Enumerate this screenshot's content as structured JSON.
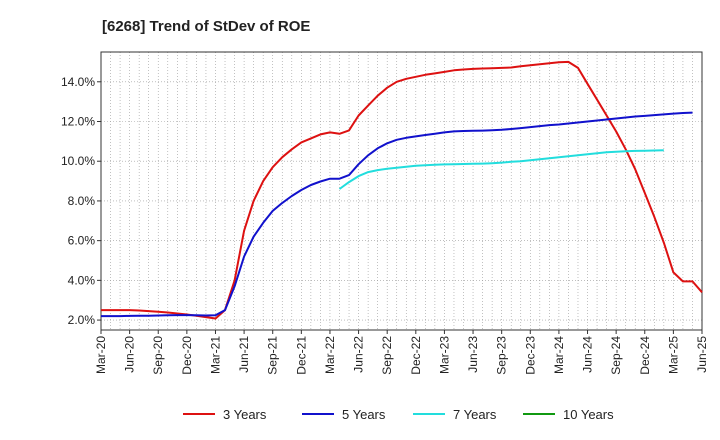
{
  "chart_data": {
    "type": "line",
    "title": "[6268]  Trend of StDev of ROE",
    "xlabel": "",
    "ylabel": "",
    "x_labels": [
      "Mar-20",
      "Jun-20",
      "Sep-20",
      "Dec-20",
      "Mar-21",
      "Jun-21",
      "Sep-21",
      "Dec-21",
      "Mar-22",
      "Jun-22",
      "Sep-22",
      "Dec-22",
      "Mar-23",
      "Jun-23",
      "Sep-23",
      "Dec-23",
      "Mar-24",
      "Jun-24",
      "Sep-24",
      "Dec-24",
      "Mar-25",
      "Jun-25"
    ],
    "ylim": [
      1.5,
      15.5
    ],
    "yticks": [
      2.0,
      4.0,
      6.0,
      8.0,
      10.0,
      12.0,
      14.0
    ],
    "ytick_labels": [
      "2.0%",
      "4.0%",
      "6.0%",
      "8.0%",
      "10.0%",
      "12.0%",
      "14.0%"
    ],
    "grid": true,
    "legend_position": "bottom",
    "series": [
      {
        "name": "3 Years",
        "color": "#dd1111",
        "start_month": 0,
        "values": [
          2.5,
          2.5,
          2.5,
          2.5,
          2.48,
          2.45,
          2.42,
          2.38,
          2.33,
          2.28,
          2.22,
          2.15,
          2.08,
          2.5,
          4.0,
          6.5,
          8.0,
          9.0,
          9.7,
          10.2,
          10.6,
          10.95,
          11.15,
          11.35,
          11.45,
          11.38,
          11.55,
          12.3,
          12.8,
          13.3,
          13.7,
          14.0,
          14.15,
          14.25,
          14.35,
          14.42,
          14.5,
          14.58,
          14.62,
          14.65,
          14.67,
          14.68,
          14.7,
          14.72,
          14.78,
          14.83,
          14.88,
          14.93,
          14.98,
          15.0,
          14.7,
          13.9,
          13.1,
          12.3,
          11.5,
          10.6,
          9.6,
          8.4,
          7.2,
          5.9,
          4.4,
          3.95,
          3.95,
          3.4
        ]
      },
      {
        "name": "5 Years",
        "color": "#1111cc",
        "start_month": 0,
        "values": [
          2.2,
          2.2,
          2.2,
          2.21,
          2.22,
          2.22,
          2.23,
          2.24,
          2.25,
          2.25,
          2.24,
          2.23,
          2.24,
          2.5,
          3.7,
          5.2,
          6.2,
          6.9,
          7.5,
          7.9,
          8.25,
          8.55,
          8.8,
          8.98,
          9.12,
          9.12,
          9.3,
          9.85,
          10.3,
          10.65,
          10.9,
          11.08,
          11.18,
          11.25,
          11.32,
          11.38,
          11.45,
          11.5,
          11.52,
          11.53,
          11.54,
          11.56,
          11.58,
          11.62,
          11.67,
          11.72,
          11.77,
          11.82,
          11.85,
          11.9,
          11.95,
          12.0,
          12.05,
          12.1,
          12.15,
          12.2,
          12.25,
          12.28,
          12.32,
          12.36,
          12.4,
          12.43,
          12.45
        ]
      },
      {
        "name": "7 Years",
        "color": "#22dddd",
        "start_month": 25,
        "values": [
          8.6,
          8.95,
          9.25,
          9.45,
          9.55,
          9.62,
          9.67,
          9.72,
          9.77,
          9.8,
          9.82,
          9.84,
          9.85,
          9.86,
          9.87,
          9.88,
          9.9,
          9.93,
          9.97,
          10.0,
          10.05,
          10.1,
          10.15,
          10.2,
          10.25,
          10.3,
          10.35,
          10.4,
          10.45,
          10.48,
          10.5,
          10.52,
          10.53,
          10.54,
          10.55
        ]
      },
      {
        "name": "10 Years",
        "color": "#119911",
        "start_month": 0,
        "values": []
      }
    ]
  }
}
